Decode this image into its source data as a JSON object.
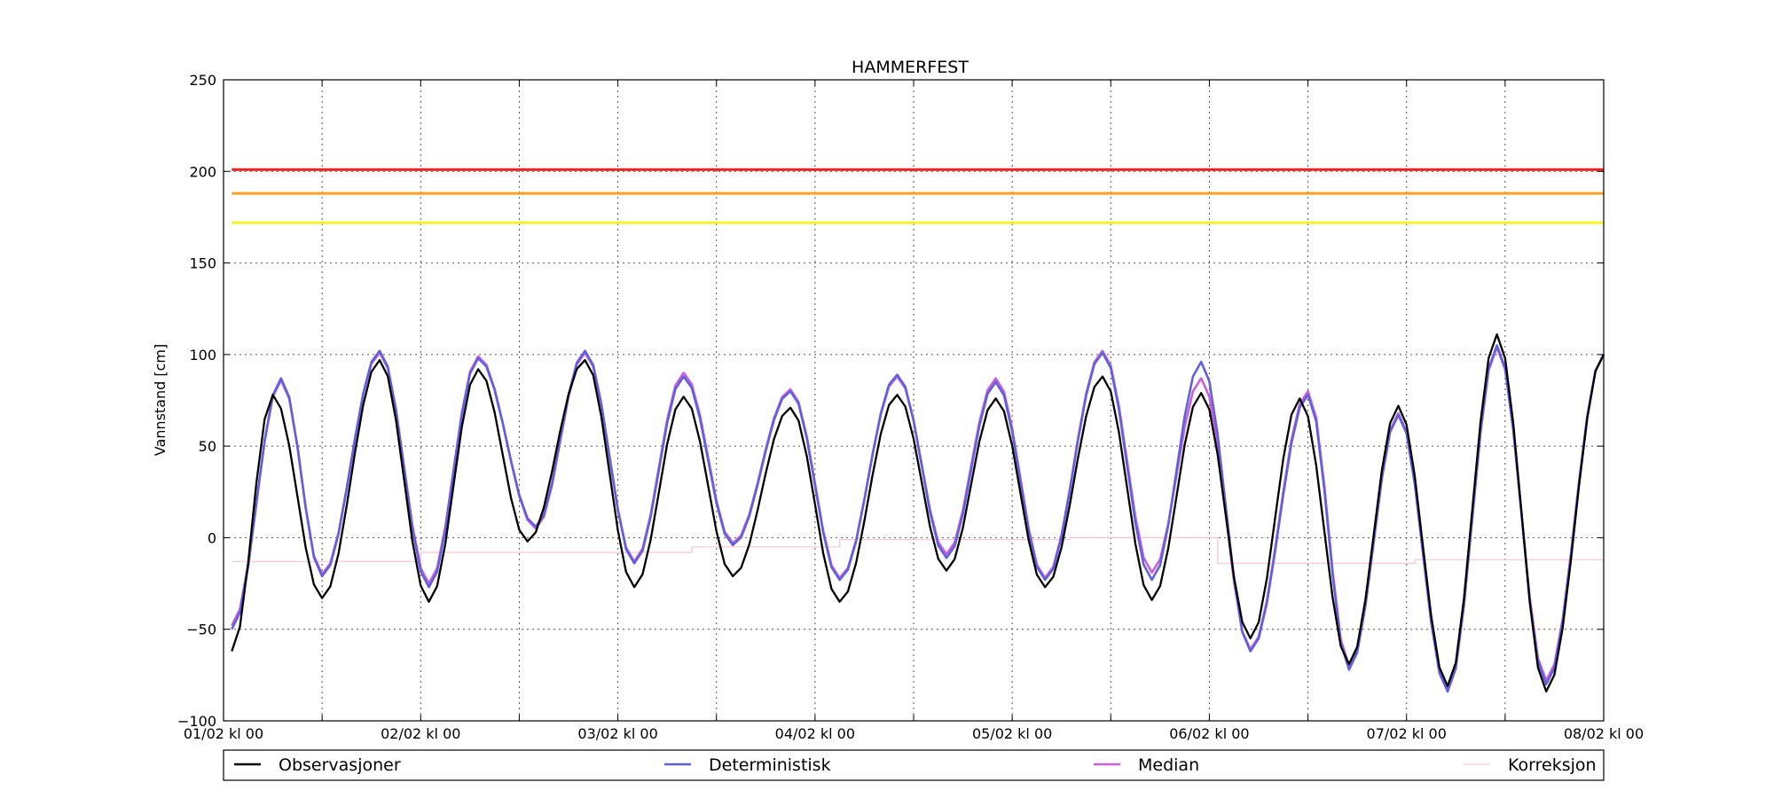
{
  "chart_data": {
    "type": "line",
    "title": "HAMMERFEST",
    "xlabel": "",
    "ylabel": "Vannstand [cm]",
    "ylim": [
      -100,
      250
    ],
    "xlim": [
      0,
      168
    ],
    "yticks": [
      -100,
      -50,
      0,
      50,
      100,
      150,
      200,
      250
    ],
    "xticks": [
      {
        "hour": 0,
        "label": "01/02 kl 00"
      },
      {
        "hour": 24,
        "label": "02/02 kl 00"
      },
      {
        "hour": 48,
        "label": "03/02 kl 00"
      },
      {
        "hour": 72,
        "label": "04/02 kl 00"
      },
      {
        "hour": 96,
        "label": "05/02 kl 00"
      },
      {
        "hour": 120,
        "label": "06/02 kl 00"
      },
      {
        "hour": 144,
        "label": "07/02 kl 00"
      },
      {
        "hour": 168,
        "label": "08/02 kl 00"
      }
    ],
    "minor_xticks": [
      12,
      36,
      60,
      84,
      108,
      132,
      156
    ],
    "grid": true,
    "legend_position": "bottom",
    "thresholds": [
      {
        "value": 201,
        "color": "#e8221c"
      },
      {
        "value": 188,
        "color": "#ffa020"
      },
      {
        "value": 172,
        "color": "#f5f525"
      }
    ],
    "tide": {
      "step_hours": 1,
      "start_hour": 1,
      "end_hour": 168
    },
    "series": [
      {
        "name": "Observasjoner",
        "color": "#000000",
        "extrema": [
          [
            1,
            -62
          ],
          [
            6,
            78
          ],
          [
            12,
            -33
          ],
          [
            19,
            97
          ],
          [
            25,
            -35
          ],
          [
            31,
            92
          ],
          [
            37,
            -2
          ],
          [
            44,
            97
          ],
          [
            50,
            -27
          ],
          [
            56,
            77
          ],
          [
            62,
            -21
          ],
          [
            69,
            71
          ],
          [
            75,
            -35
          ],
          [
            82,
            78
          ],
          [
            88,
            -18
          ],
          [
            94,
            76
          ],
          [
            100,
            -27
          ],
          [
            107,
            88
          ],
          [
            113,
            -34
          ],
          [
            119,
            79
          ],
          [
            125,
            -55
          ],
          [
            131,
            76
          ],
          [
            137,
            -69
          ],
          [
            143,
            72
          ],
          [
            149,
            -81
          ],
          [
            155,
            111
          ],
          [
            161,
            -84
          ],
          [
            168,
            100
          ]
        ]
      },
      {
        "name": "Deterministisk",
        "color": "#6060dd",
        "extrema": [
          [
            1,
            -50
          ],
          [
            7,
            87
          ],
          [
            12,
            -21
          ],
          [
            19,
            102
          ],
          [
            25,
            -27
          ],
          [
            31,
            98
          ],
          [
            38,
            6
          ],
          [
            44,
            102
          ],
          [
            50,
            -14
          ],
          [
            56,
            88
          ],
          [
            62,
            -4
          ],
          [
            69,
            80
          ],
          [
            75,
            -23
          ],
          [
            82,
            89
          ],
          [
            88,
            -11
          ],
          [
            94,
            85
          ],
          [
            100,
            -23
          ],
          [
            107,
            101
          ],
          [
            113,
            -23
          ],
          [
            119,
            96
          ],
          [
            125,
            -62
          ],
          [
            132,
            78
          ],
          [
            137,
            -72
          ],
          [
            143,
            67
          ],
          [
            149,
            -84
          ],
          [
            155,
            105
          ],
          [
            161,
            -80
          ],
          [
            168,
            100
          ]
        ]
      },
      {
        "name": "Median",
        "color": "#c85fd8",
        "extrema": [
          [
            1,
            -48
          ],
          [
            7,
            86
          ],
          [
            12,
            -20
          ],
          [
            19,
            101
          ],
          [
            25,
            -25
          ],
          [
            31,
            99
          ],
          [
            38,
            5
          ],
          [
            44,
            101
          ],
          [
            50,
            -13
          ],
          [
            56,
            90
          ],
          [
            62,
            -3
          ],
          [
            69,
            81
          ],
          [
            75,
            -22
          ],
          [
            82,
            88
          ],
          [
            88,
            -9
          ],
          [
            94,
            87
          ],
          [
            100,
            -22
          ],
          [
            107,
            102
          ],
          [
            113,
            -19
          ],
          [
            119,
            87
          ],
          [
            125,
            -61
          ],
          [
            132,
            80
          ],
          [
            137,
            -70
          ],
          [
            143,
            68
          ],
          [
            149,
            -83
          ],
          [
            155,
            104
          ],
          [
            161,
            -78
          ],
          [
            168,
            100
          ]
        ]
      },
      {
        "name": "Korreksjon",
        "color": "#f4c6d8",
        "steps": [
          [
            1,
            -13
          ],
          [
            24,
            -8
          ],
          [
            57,
            -5
          ],
          [
            75,
            -1
          ],
          [
            103,
            0
          ],
          [
            121,
            -14
          ],
          [
            145,
            -12
          ],
          [
            168,
            -12
          ]
        ]
      }
    ]
  }
}
